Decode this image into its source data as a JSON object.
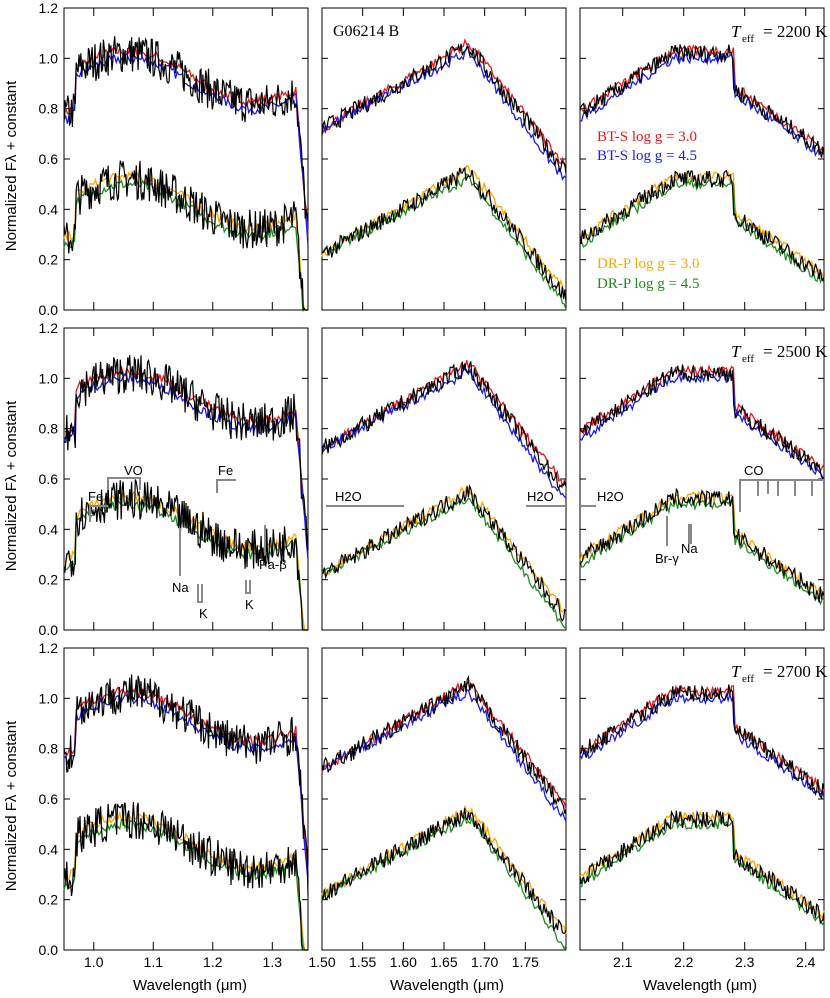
{
  "figure": {
    "object_label": "G06214 B",
    "ylabel": "Normalized Fλ + constant",
    "xlabel": "Wavelength (μm)",
    "teff_prefix": "T",
    "teff_sub": "eff",
    "rows": [
      {
        "teff": "= 2200 K"
      },
      {
        "teff": "= 2500 K"
      },
      {
        "teff": "= 2700 K"
      }
    ],
    "legend": [
      {
        "label": "BT-S  log g = 3.0",
        "color": "#e8181a"
      },
      {
        "label": "BT-S  log g = 4.5",
        "color": "#1a1aee"
      },
      {
        "label": "DR-P  log g = 3.0",
        "color": "#ffa500"
      },
      {
        "label": "DR-P  log g = 4.5",
        "color": "#228b22"
      }
    ],
    "features": {
      "vo": "VO",
      "fe": "Fe",
      "na": "Na",
      "k": "K",
      "pab": "Pa-β",
      "h2o": "H2O",
      "co": "CO",
      "brg": "Br-γ"
    }
  },
  "chart_data": [
    {
      "type": "line",
      "panel": "J",
      "xlim": [
        0.95,
        1.36
      ],
      "ylim": [
        0.0,
        1.2
      ],
      "xticks": [
        "1.0",
        "1.1",
        "1.2",
        "1.3"
      ],
      "yticks": [
        "0.0",
        "0.2",
        "0.4",
        "0.6",
        "0.8",
        "1.0",
        "1.2"
      ],
      "series": [
        {
          "name": "observed",
          "color": "#000000"
        },
        {
          "name": "BT-S log g = 3.0",
          "color": "#e8181a"
        },
        {
          "name": "BT-S log g = 4.5",
          "color": "#1a1aee"
        },
        {
          "name": "DR-P log g = 3.0",
          "color": "#ffa500"
        },
        {
          "name": "DR-P log g = 4.5",
          "color": "#228b22"
        }
      ]
    },
    {
      "type": "line",
      "panel": "H",
      "xlim": [
        1.5,
        1.8
      ],
      "ylim": [
        0.0,
        1.2
      ],
      "xticks": [
        "1.50",
        "1.55",
        "1.60",
        "1.65",
        "1.70",
        "1.75"
      ]
    },
    {
      "type": "line",
      "panel": "K",
      "xlim": [
        2.03,
        2.43
      ],
      "ylim": [
        0.0,
        1.2
      ],
      "xticks": [
        "2.1",
        "2.2",
        "2.3",
        "2.4"
      ]
    }
  ]
}
